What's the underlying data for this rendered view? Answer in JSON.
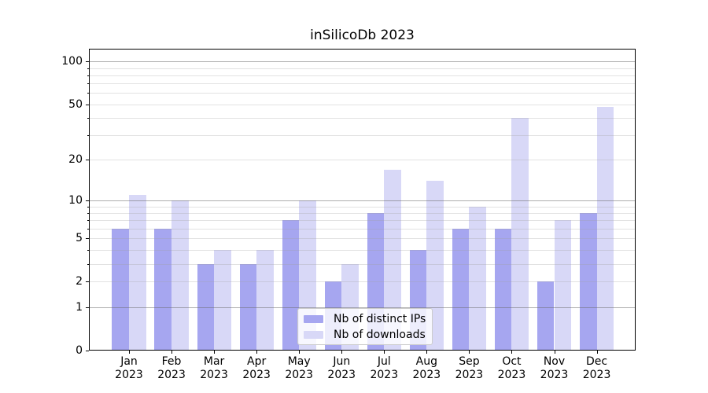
{
  "figure_title": "inSilicoDb 2023",
  "chart_data": {
    "type": "bar",
    "title": "inSilicoDb 2023",
    "categories": [
      "Jan 2023",
      "Feb 2023",
      "Mar 2023",
      "Apr 2023",
      "May 2023",
      "Jun 2023",
      "Jul 2023",
      "Aug 2023",
      "Sep 2023",
      "Oct 2023",
      "Nov 2023",
      "Dec 2023"
    ],
    "series": [
      {
        "name": "Nb of distinct IPs",
        "color": "#a6a6f0",
        "values": [
          6,
          6,
          3,
          3,
          7,
          2,
          8,
          4,
          6,
          6,
          2,
          8
        ]
      },
      {
        "name": "Nb of downloads",
        "color": "#d8d8f7",
        "values": [
          11,
          10,
          4,
          4,
          10,
          3,
          17,
          14,
          9,
          40,
          7,
          48
        ]
      }
    ],
    "xlabel": "",
    "ylabel": "",
    "yaxis": {
      "scale": "log10(1+y)",
      "ylim": [
        0,
        123
      ],
      "tick_values": [
        0,
        1,
        2,
        5,
        10,
        20,
        50,
        100
      ],
      "tick_labels": [
        "0",
        "1",
        "2",
        "5",
        "10",
        "20",
        "50",
        "100"
      ],
      "major_grid_values": [
        1,
        10,
        100
      ],
      "minor_grid_values": [
        2,
        3,
        4,
        5,
        6,
        7,
        8,
        9,
        20,
        30,
        40,
        50,
        60,
        70,
        80,
        90
      ]
    },
    "grid": true,
    "legend": {
      "position": "lower center",
      "entries": [
        "Nb of distinct IPs",
        "Nb of downloads"
      ]
    },
    "colors": {
      "series_dark": "#a6a6f0",
      "series_light": "#d8d8f7",
      "major_grid": "#b4b4b4",
      "minor_grid": "#e8e8e8",
      "spine": "#000000",
      "background": "#ffffff"
    }
  }
}
